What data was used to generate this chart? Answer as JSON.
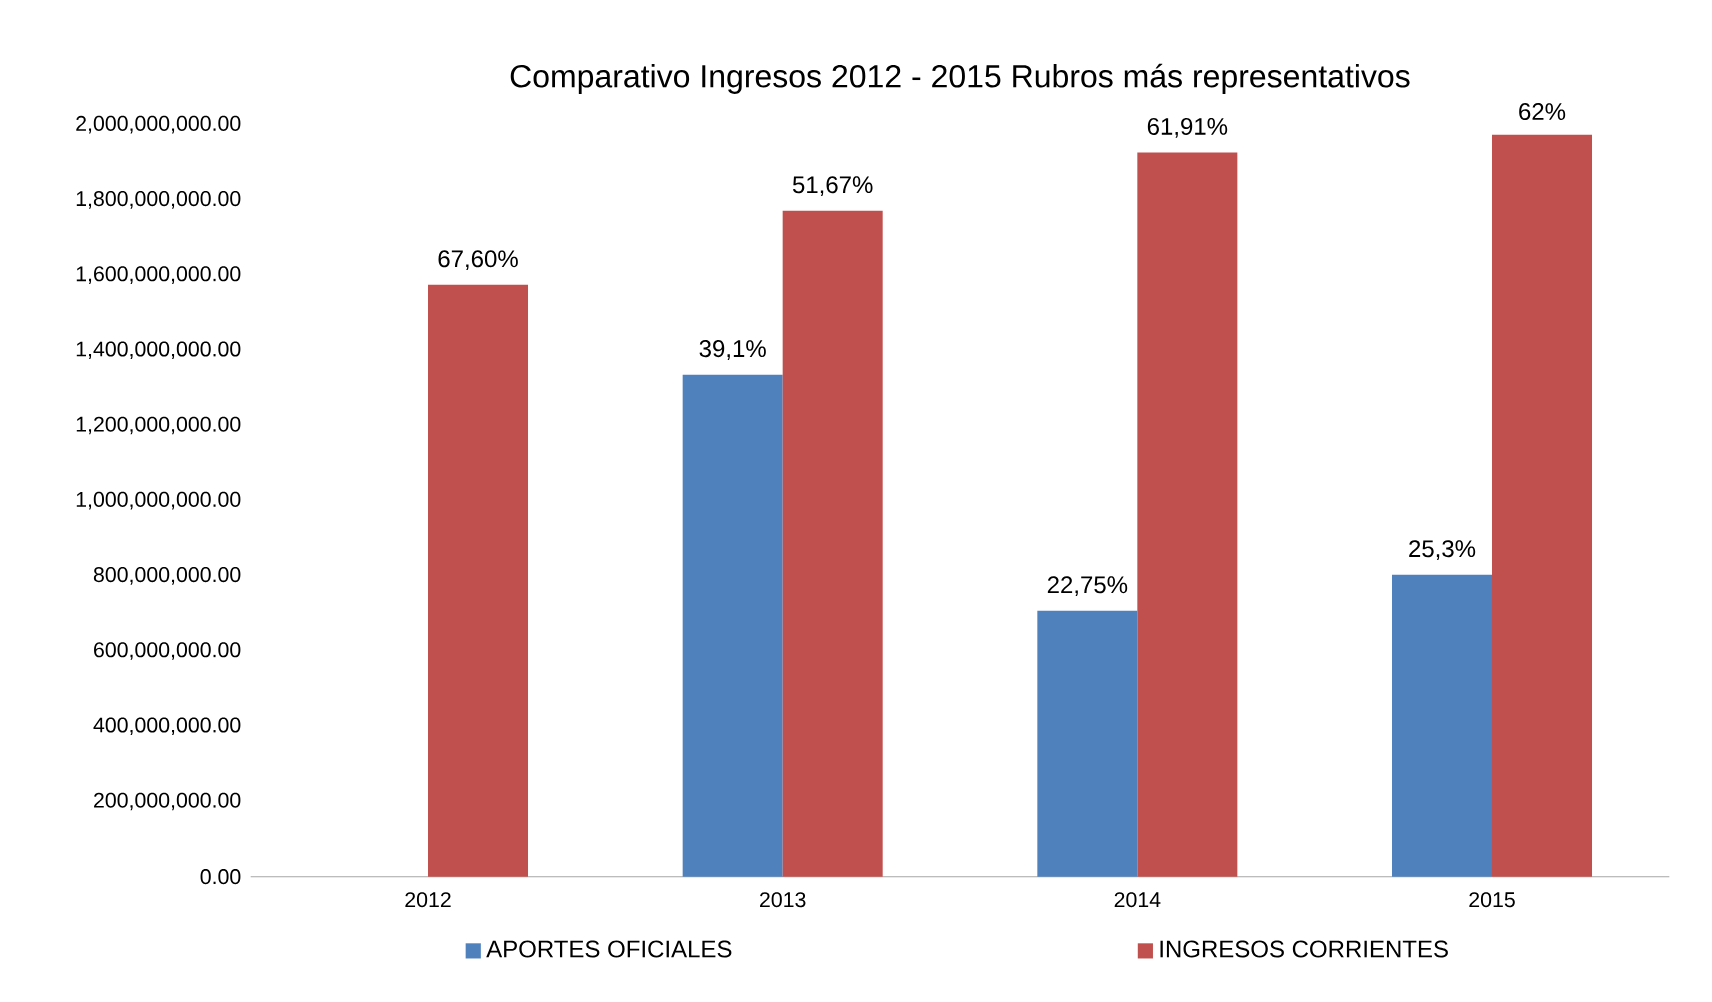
{
  "chart_data": {
    "type": "bar",
    "title": "Comparativo Ingresos 2012 - 2015 Rubros más representativos",
    "categories": [
      "2012",
      "2013",
      "2014",
      "2015"
    ],
    "series": [
      {
        "name": "APORTES OFICIALES",
        "color": "#4f81bd",
        "values": [
          null,
          1335000000,
          707000000,
          803000000
        ]
      },
      {
        "name": "INGRESOS CORRIENTES",
        "color": "#c0504d",
        "values": [
          1574000000,
          1771000000,
          1926000000,
          1973000000
        ]
      }
    ],
    "annotations": [
      {
        "text": "67,60%",
        "x": "2012",
        "y": 1574000000
      },
      {
        "text": "39,1%",
        "x": "2013",
        "y": 1335000000
      },
      {
        "text": "51,67%",
        "x": "2013",
        "y": 1771000000
      },
      {
        "text": "22,75%",
        "x": "2014",
        "y": 707000000
      },
      {
        "text": "61,91%",
        "x": "2014",
        "y": 1926000000
      },
      {
        "text": "25,3%",
        "x": "2015",
        "y": 803000000
      },
      {
        "text": "62%",
        "x": "2015",
        "y": 1973000000
      }
    ],
    "ylim": [
      0,
      2000000000
    ],
    "yticks": [
      {
        "value": 0,
        "label": "0.00"
      },
      {
        "value": 200000000,
        "label": "200,000,000.00"
      },
      {
        "value": 400000000,
        "label": "400,000,000.00"
      },
      {
        "value": 600000000,
        "label": "600,000,000.00"
      },
      {
        "value": 800000000,
        "label": "800,000,000.00"
      },
      {
        "value": 1000000000,
        "label": "1,000,000,000.00"
      },
      {
        "value": 1200000000,
        "label": "1,200,000,000.00"
      },
      {
        "value": 1400000000,
        "label": "1,400,000,000.00"
      },
      {
        "value": 1600000000,
        "label": "1,600,000,000.00"
      },
      {
        "value": 1800000000,
        "label": "1,800,000,000.00"
      },
      {
        "value": 2000000000,
        "label": "2,000,000,000.00"
      }
    ],
    "legend": "bottom"
  }
}
